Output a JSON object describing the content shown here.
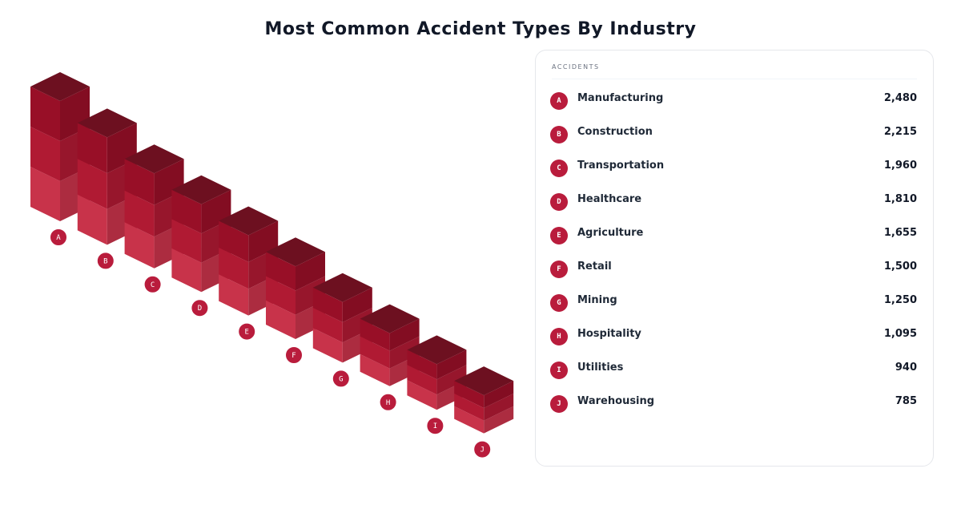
{
  "title": "Most Common Accident Types By Industry",
  "panel": {
    "header": "Accidents"
  },
  "chart_data": {
    "type": "bar",
    "categories": [
      "Manufacturing",
      "Construction",
      "Transportation",
      "Healthcare",
      "Agriculture",
      "Retail",
      "Mining",
      "Hospitality",
      "Utilities",
      "Warehousing"
    ],
    "series": [
      {
        "name": "Accidents",
        "values": [
          2480,
          2215,
          1960,
          1810,
          1655,
          1500,
          1250,
          1095,
          940,
          785
        ]
      }
    ]
  },
  "bar_badges": [
    "A",
    "B",
    "C",
    "D",
    "E",
    "F",
    "G",
    "H",
    "I",
    "J"
  ],
  "rows": [
    {
      "badge": "A",
      "name": "Manufacturing",
      "sub": "",
      "value": "2,480"
    },
    {
      "badge": "B",
      "name": "Construction",
      "sub": "",
      "value": "2,215"
    },
    {
      "badge": "C",
      "name": "Transportation",
      "sub": "",
      "value": "1,960"
    },
    {
      "badge": "D",
      "name": "Healthcare",
      "sub": "",
      "value": "1,810"
    },
    {
      "badge": "E",
      "name": "Agriculture",
      "sub": "",
      "value": "1,655"
    },
    {
      "badge": "F",
      "name": "Retail",
      "sub": "",
      "value": "1,500"
    },
    {
      "badge": "G",
      "name": "Mining",
      "sub": "",
      "value": "1,250"
    },
    {
      "badge": "H",
      "name": "Hospitality",
      "sub": "",
      "value": "1,095"
    },
    {
      "badge": "I",
      "name": "Utilities",
      "sub": "",
      "value": "940"
    },
    {
      "badge": "J",
      "name": "Warehousing",
      "sub": "",
      "value": "785"
    }
  ],
  "footer": "",
  "colors": {
    "face_light": "#c8334a",
    "face_mid": "#b01a33",
    "face_dark": "#980f27",
    "top": "#6d1020",
    "badge": "#b91c3c"
  }
}
